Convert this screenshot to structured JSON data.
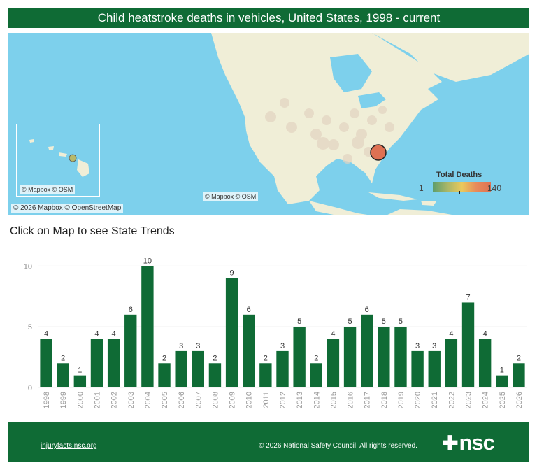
{
  "header": {
    "title": "Child heatstroke deaths in vehicles, United States, 1998 - current"
  },
  "map": {
    "attribution_main": "© 2026 Mapbox © OpenStreetMap",
    "attribution_center": "© Mapbox © OSM",
    "attribution_inset": "© Mapbox © OSM",
    "legend": {
      "title": "Total Deaths",
      "min": "1",
      "max": "140"
    },
    "colors": {
      "water": "#7dd0ec",
      "land": "#f0eed7",
      "highlight": "#de7153"
    }
  },
  "subtitle": "Click on Map to see State Trends",
  "chart_data": {
    "type": "bar",
    "categories": [
      "1998",
      "1999",
      "2000",
      "2001",
      "2002",
      "2003",
      "2004",
      "2005",
      "2006",
      "2007",
      "2008",
      "2009",
      "2010",
      "2011",
      "2012",
      "2013",
      "2014",
      "2015",
      "2016",
      "2017",
      "2018",
      "2019",
      "2020",
      "2021",
      "2022",
      "2023",
      "2024",
      "2025",
      "2026"
    ],
    "values": [
      4,
      2,
      1,
      4,
      4,
      6,
      10,
      2,
      3,
      3,
      2,
      9,
      6,
      2,
      3,
      5,
      2,
      4,
      5,
      6,
      5,
      5,
      3,
      3,
      4,
      7,
      4,
      1,
      2
    ],
    "yticks": [
      0,
      5,
      10
    ],
    "ylim": [
      0,
      11
    ],
    "grid": true,
    "color": "#0f6b35"
  },
  "footer": {
    "link": "injuryfacts.nsc.org",
    "copyright": "© 2026 National Safety Council. All rights reserved.",
    "logo_symbol": "✚",
    "logo_text": "nsc"
  }
}
